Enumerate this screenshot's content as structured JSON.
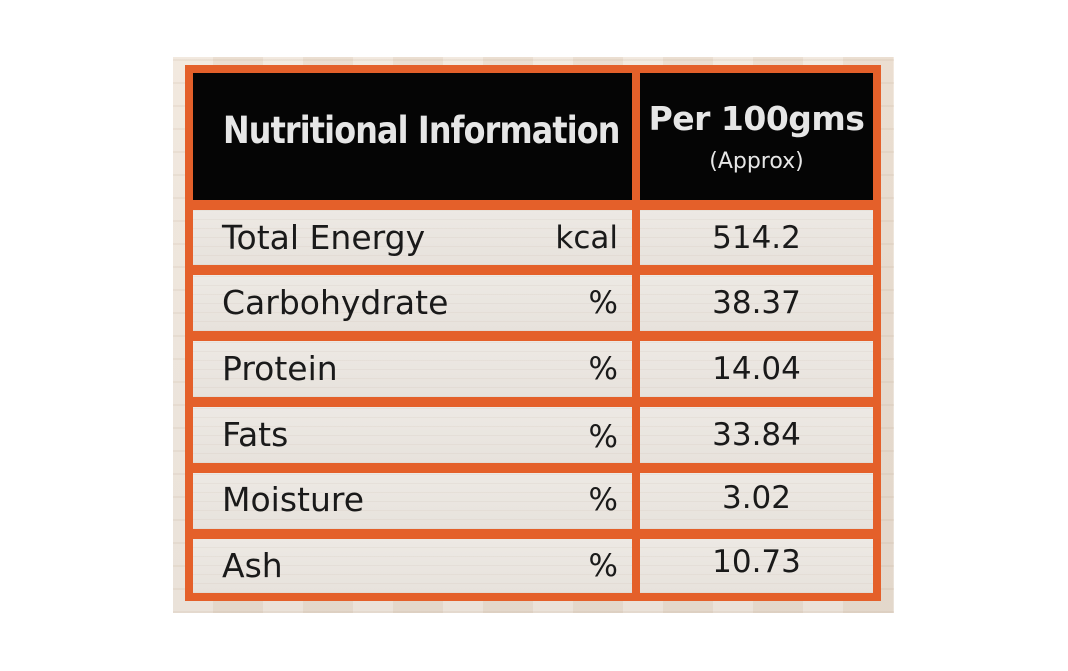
{
  "header": {
    "title": "Nutritional Information",
    "per_label": "Per 100gms",
    "approx_label": "(Approx)"
  },
  "rows": [
    {
      "name": "Total Energy",
      "unit": "kcal",
      "value": "514.2"
    },
    {
      "name": "Carbohydrate",
      "unit": "%",
      "value": "38.37"
    },
    {
      "name": "Protein",
      "unit": "%",
      "value": "14.04"
    },
    {
      "name": "Fats",
      "unit": "%",
      "value": "33.84"
    },
    {
      "name": "Moisture",
      "unit": "%",
      "value": "3.02"
    },
    {
      "name": "Ash",
      "unit": "%",
      "value": "10.73"
    }
  ],
  "colors": {
    "border": "#e4602a",
    "header_bg": "#050505",
    "header_text": "#e6e6e6",
    "cell_bg": "#ebe7e2",
    "text": "#1a1a1a"
  }
}
